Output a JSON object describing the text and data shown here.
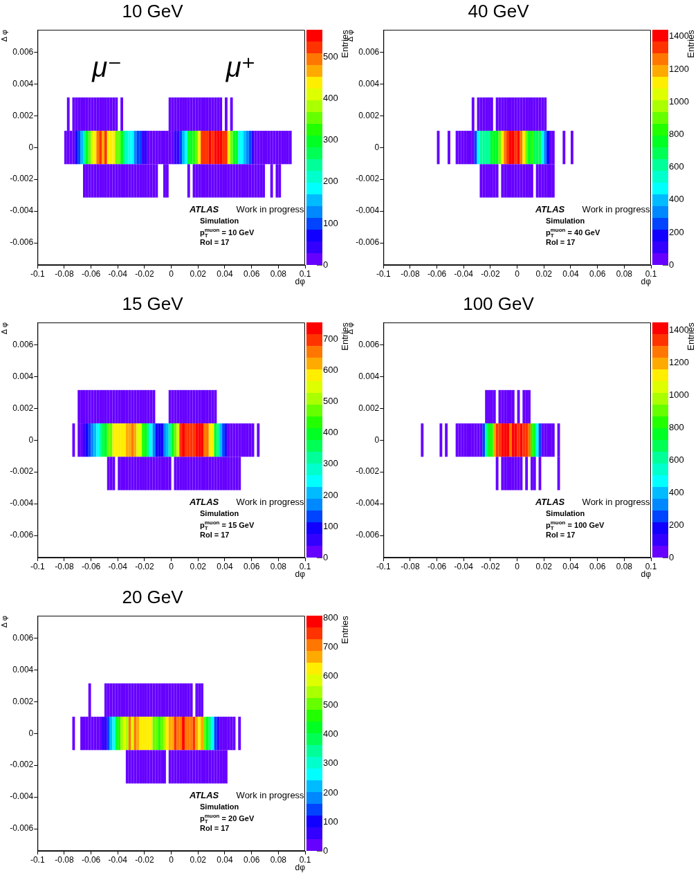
{
  "chart_data": [
    {
      "type": "heatmap",
      "title": "10 GeV",
      "xlabel": "dφ",
      "ylabel": "Δ φ",
      "clabel": "Entries",
      "xlim": [
        -0.1,
        0.1
      ],
      "xticks": [
        -0.1,
        -0.08,
        -0.06,
        -0.04,
        -0.02,
        0,
        0.02,
        0.04,
        0.06,
        0.08,
        0.1
      ],
      "ylim": [
        -0.0074,
        0.0074
      ],
      "yticks": [
        -0.006,
        -0.004,
        -0.002,
        0,
        0.002,
        0.004,
        0.006
      ],
      "clim": [
        0,
        565
      ],
      "cticks": [
        0,
        100,
        200,
        300,
        400,
        500
      ],
      "x": [
        -0.079,
        -0.077,
        -0.075,
        -0.073,
        -0.071,
        -0.069,
        -0.067,
        -0.065,
        -0.063,
        -0.061,
        -0.059,
        -0.057,
        -0.055,
        -0.053,
        -0.051,
        -0.049,
        -0.047,
        -0.045,
        -0.043,
        -0.041,
        -0.039,
        -0.037,
        -0.035,
        -0.033,
        -0.031,
        -0.029,
        -0.027,
        -0.025,
        -0.023,
        -0.021,
        -0.019,
        -0.017,
        -0.015,
        -0.013,
        -0.011,
        -0.009,
        -0.007,
        -0.005,
        -0.003,
        -0.001,
        0.001,
        0.003,
        0.005,
        0.007,
        0.009,
        0.011,
        0.013,
        0.015,
        0.017,
        0.019,
        0.021,
        0.023,
        0.025,
        0.027,
        0.029,
        0.031,
        0.033,
        0.035,
        0.037,
        0.039,
        0.041,
        0.043,
        0.045,
        0.047,
        0.049,
        0.051,
        0.053,
        0.055,
        0.057,
        0.059,
        0.061,
        0.063,
        0.065,
        0.067,
        0.069,
        0.071,
        0.073,
        0.075,
        0.077,
        0.079,
        0.081,
        0.083,
        0.085,
        0.087,
        0.089
      ],
      "y": [
        0.0021,
        0,
        -0.0021
      ],
      "cells": [
        [
          null,
          14,
          null,
          14,
          14,
          14,
          14,
          14,
          14,
          14,
          14,
          14,
          14,
          14,
          14,
          14,
          14,
          14,
          14,
          14,
          null,
          14,
          null,
          null,
          null,
          null,
          null,
          null,
          null,
          null,
          null,
          null,
          null,
          null,
          null,
          null,
          null,
          null,
          null,
          14,
          14,
          14,
          14,
          14,
          14,
          14,
          14,
          14,
          14,
          14,
          14,
          14,
          14,
          14,
          14,
          14,
          14,
          14,
          14,
          null,
          14,
          null,
          14,
          null,
          null,
          null,
          null,
          null,
          null,
          null,
          null,
          null,
          null,
          null,
          null,
          null,
          null,
          null,
          null,
          null,
          null,
          null,
          null,
          null,
          null
        ],
        [
          14,
          14,
          14,
          14,
          71,
          99,
          155,
          240,
          297,
          353,
          410,
          438,
          494,
          523,
          466,
          523,
          438,
          438,
          438,
          353,
          353,
          297,
          240,
          212,
          184,
          184,
          127,
          99,
          99,
          42,
          42,
          14,
          14,
          14,
          14,
          14,
          14,
          14,
          14,
          14,
          14,
          42,
          42,
          99,
          155,
          184,
          297,
          297,
          325,
          353,
          438,
          523,
          523,
          523,
          551,
          523,
          551,
          551,
          551,
          523,
          523,
          438,
          353,
          297,
          297,
          184,
          184,
          155,
          127,
          99,
          42,
          14,
          14,
          14,
          14,
          14,
          14,
          14,
          14,
          14,
          14,
          14,
          14,
          14,
          14
        ],
        [
          null,
          null,
          null,
          null,
          null,
          null,
          null,
          14,
          14,
          14,
          14,
          14,
          14,
          14,
          14,
          14,
          14,
          14,
          14,
          14,
          14,
          14,
          14,
          14,
          14,
          14,
          14,
          14,
          14,
          14,
          14,
          14,
          14,
          14,
          14,
          null,
          null,
          14,
          14,
          null,
          null,
          null,
          null,
          null,
          null,
          null,
          14,
          null,
          14,
          14,
          14,
          14,
          14,
          14,
          14,
          14,
          14,
          14,
          14,
          14,
          14,
          14,
          14,
          14,
          14,
          14,
          14,
          14,
          14,
          14,
          14,
          14,
          14,
          14,
          14,
          null,
          null,
          14,
          null,
          14,
          14,
          null,
          null,
          null,
          null
        ]
      ],
      "annotations": [
        "μ⁻",
        "μ⁺",
        "ATLAS",
        "Work in progress",
        "Simulation",
        "p$_{T}$$^{muon}$ = 10 GeV",
        "RoI = 17"
      ]
    },
    {
      "type": "heatmap",
      "title": "40 GeV",
      "xlabel": "dφ",
      "ylabel": "Δ φ",
      "clabel": "Entries",
      "xlim": [
        -0.1,
        0.1
      ],
      "xticks": [
        -0.1,
        -0.08,
        -0.06,
        -0.04,
        -0.02,
        0,
        0.02,
        0.04,
        0.06,
        0.08,
        0.1
      ],
      "ylim": [
        -0.0074,
        0.0074
      ],
      "yticks": [
        -0.006,
        -0.004,
        -0.002,
        0,
        0.002,
        0.004,
        0.006
      ],
      "clim": [
        0,
        1441
      ],
      "cticks": [
        0,
        200,
        400,
        600,
        800,
        1000,
        1200,
        1400
      ],
      "x": [
        -0.079,
        -0.077,
        -0.075,
        -0.073,
        -0.071,
        -0.069,
        -0.067,
        -0.065,
        -0.063,
        -0.061,
        -0.059,
        -0.057,
        -0.055,
        -0.053,
        -0.051,
        -0.049,
        -0.047,
        -0.045,
        -0.043,
        -0.041,
        -0.039,
        -0.037,
        -0.035,
        -0.033,
        -0.031,
        -0.029,
        -0.027,
        -0.025,
        -0.023,
        -0.021,
        -0.019,
        -0.017,
        -0.015,
        -0.013,
        -0.011,
        -0.009,
        -0.007,
        -0.005,
        -0.003,
        -0.001,
        0.001,
        0.003,
        0.005,
        0.007,
        0.009,
        0.011,
        0.013,
        0.015,
        0.017,
        0.019,
        0.021,
        0.023,
        0.025,
        0.027,
        0.029,
        0.031,
        0.033,
        0.035,
        0.037,
        0.039,
        0.041,
        0.043,
        0.045,
        0.047,
        0.049,
        0.051,
        0.053,
        0.055,
        0.057,
        0.059,
        0.061,
        0.063,
        0.065,
        0.067,
        0.069,
        0.071,
        0.073,
        0.075,
        0.077,
        0.079,
        0.081,
        0.083,
        0.085,
        0.087,
        0.089
      ],
      "y": [
        0.0021,
        0,
        -0.0021
      ],
      "cells": [
        [
          null,
          null,
          null,
          null,
          null,
          null,
          null,
          null,
          null,
          null,
          null,
          null,
          null,
          null,
          null,
          null,
          null,
          null,
          null,
          null,
          null,
          null,
          null,
          36,
          null,
          36,
          36,
          36,
          36,
          36,
          36,
          null,
          36,
          36,
          36,
          36,
          36,
          36,
          36,
          36,
          36,
          36,
          36,
          36,
          36,
          36,
          36,
          36,
          36,
          36,
          36,
          null,
          null,
          null,
          null,
          null,
          null,
          null,
          null,
          null,
          null,
          null,
          null,
          null,
          null,
          null,
          null,
          null,
          null,
          null,
          null,
          null,
          null,
          null,
          null,
          null,
          null,
          null,
          null,
          null,
          null,
          null,
          null,
          null,
          null
        ],
        [
          null,
          null,
          null,
          null,
          null,
          null,
          null,
          null,
          null,
          null,
          36,
          null,
          null,
          null,
          36,
          null,
          null,
          36,
          36,
          36,
          36,
          36,
          36,
          36,
          252,
          468,
          612,
          612,
          612,
          612,
          756,
          756,
          756,
          900,
          1116,
          1260,
          1332,
          1404,
          1404,
          1332,
          1404,
          1260,
          1116,
          900,
          756,
          828,
          684,
          684,
          684,
          468,
          324,
          180,
          36,
          36,
          null,
          null,
          null,
          36,
          null,
          null,
          36,
          null,
          null,
          null,
          null,
          null,
          null,
          null,
          null,
          null,
          null,
          null,
          null,
          null,
          null,
          null,
          null,
          null,
          null,
          null,
          null,
          null,
          null,
          null,
          null
        ],
        [
          null,
          null,
          null,
          null,
          null,
          null,
          null,
          null,
          null,
          null,
          null,
          null,
          null,
          null,
          null,
          null,
          null,
          null,
          null,
          null,
          null,
          null,
          null,
          null,
          null,
          null,
          36,
          36,
          36,
          36,
          36,
          36,
          36,
          null,
          36,
          36,
          36,
          36,
          36,
          36,
          36,
          36,
          36,
          36,
          36,
          36,
          null,
          36,
          36,
          36,
          36,
          36,
          36,
          36,
          null,
          null,
          null,
          null,
          null,
          null,
          null,
          null,
          null,
          null,
          null,
          null,
          null,
          null,
          null,
          null,
          null,
          null,
          null,
          null,
          null,
          null,
          null,
          null,
          null,
          null,
          null,
          null,
          null,
          null,
          null
        ]
      ],
      "annotations": [
        "ATLAS",
        "Work in progress",
        "Simulation",
        "p$_{T}$$^{muon}$ = 40 GeV",
        "RoI = 17"
      ]
    },
    {
      "type": "heatmap",
      "title": "15 GeV",
      "xlabel": "dφ",
      "ylabel": "Δ φ",
      "clabel": "Entries",
      "xlim": [
        -0.1,
        0.1
      ],
      "xticks": [
        -0.1,
        -0.08,
        -0.06,
        -0.04,
        -0.02,
        0,
        0.02,
        0.04,
        0.06,
        0.08,
        0.1
      ],
      "ylim": [
        -0.0074,
        0.0074
      ],
      "yticks": [
        -0.006,
        -0.004,
        -0.002,
        0,
        0.002,
        0.004,
        0.006
      ],
      "clim": [
        0,
        754
      ],
      "cticks": [
        0,
        100,
        200,
        300,
        400,
        500,
        600,
        700
      ],
      "x": [
        -0.079,
        -0.077,
        -0.075,
        -0.073,
        -0.071,
        -0.069,
        -0.067,
        -0.065,
        -0.063,
        -0.061,
        -0.059,
        -0.057,
        -0.055,
        -0.053,
        -0.051,
        -0.049,
        -0.047,
        -0.045,
        -0.043,
        -0.041,
        -0.039,
        -0.037,
        -0.035,
        -0.033,
        -0.031,
        -0.029,
        -0.027,
        -0.025,
        -0.023,
        -0.021,
        -0.019,
        -0.017,
        -0.015,
        -0.013,
        -0.011,
        -0.009,
        -0.007,
        -0.005,
        -0.003,
        -0.001,
        0.001,
        0.003,
        0.005,
        0.007,
        0.009,
        0.011,
        0.013,
        0.015,
        0.017,
        0.019,
        0.021,
        0.023,
        0.025,
        0.027,
        0.029,
        0.031,
        0.033,
        0.035,
        0.037,
        0.039,
        0.041,
        0.043,
        0.045,
        0.047,
        0.049,
        0.051,
        0.053,
        0.055,
        0.057,
        0.059,
        0.061,
        0.063,
        0.065,
        0.067,
        0.069,
        0.071,
        0.073,
        0.075,
        0.077,
        0.079,
        0.081,
        0.083,
        0.085,
        0.087,
        0.089
      ],
      "y": [
        0.0021,
        0,
        -0.0021
      ],
      "cells": [
        [
          null,
          null,
          null,
          null,
          null,
          19,
          19,
          19,
          19,
          19,
          19,
          19,
          19,
          19,
          19,
          19,
          19,
          19,
          19,
          19,
          19,
          19,
          19,
          19,
          19,
          19,
          19,
          19,
          19,
          19,
          19,
          19,
          19,
          19,
          null,
          null,
          null,
          null,
          null,
          19,
          19,
          19,
          19,
          19,
          19,
          19,
          19,
          19,
          19,
          19,
          19,
          19,
          19,
          19,
          19,
          19,
          19,
          null,
          null,
          null,
          null,
          null,
          null,
          null,
          null,
          null,
          null,
          null,
          null,
          null,
          null,
          null,
          null,
          null,
          null,
          null,
          null,
          null,
          null,
          null,
          null,
          null,
          null,
          null,
          null
        ],
        [
          null,
          null,
          null,
          19,
          null,
          19,
          19,
          57,
          94,
          132,
          170,
          207,
          245,
          320,
          358,
          396,
          471,
          471,
          584,
          584,
          584,
          584,
          584,
          622,
          622,
          660,
          622,
          547,
          547,
          434,
          396,
          320,
          245,
          170,
          94,
          94,
          94,
          170,
          207,
          320,
          396,
          471,
          547,
          697,
          735,
          697,
          697,
          697,
          697,
          735,
          735,
          735,
          660,
          660,
          584,
          584,
          396,
          320,
          207,
          132,
          57,
          19,
          19,
          19,
          19,
          19,
          19,
          19,
          19,
          19,
          19,
          null,
          19,
          null,
          null,
          null,
          null,
          null,
          null,
          null,
          null,
          null,
          null,
          null,
          null
        ],
        [
          null,
          null,
          null,
          null,
          null,
          null,
          null,
          null,
          null,
          null,
          null,
          null,
          null,
          null,
          null,
          null,
          19,
          19,
          19,
          null,
          19,
          19,
          19,
          19,
          19,
          19,
          19,
          19,
          19,
          19,
          19,
          19,
          19,
          19,
          19,
          19,
          19,
          19,
          19,
          19,
          null,
          19,
          19,
          19,
          19,
          19,
          19,
          19,
          19,
          19,
          19,
          19,
          19,
          19,
          19,
          19,
          19,
          19,
          19,
          19,
          19,
          19,
          19,
          19,
          19,
          19,
          null,
          null,
          null,
          null,
          null,
          null,
          null,
          null,
          null,
          null,
          null,
          null,
          null,
          null,
          null,
          null,
          null,
          null,
          null
        ]
      ],
      "annotations": [
        "ATLAS",
        "Work in progress",
        "Simulation",
        "p$_{T}$$^{muon}$ = 15 GeV",
        "RoI = 17"
      ]
    },
    {
      "type": "heatmap",
      "title": "100 GeV",
      "xlabel": "dφ",
      "ylabel": "Δ φ",
      "clabel": "Entries",
      "xlim": [
        -0.1,
        0.1
      ],
      "xticks": [
        -0.1,
        -0.08,
        -0.06,
        -0.04,
        -0.02,
        0,
        0.02,
        0.04,
        0.06,
        0.08,
        0.1
      ],
      "ylim": [
        -0.0074,
        0.0074
      ],
      "yticks": [
        -0.006,
        -0.004,
        -0.002,
        0,
        0.002,
        0.004,
        0.006
      ],
      "clim": [
        0,
        1446
      ],
      "cticks": [
        0,
        200,
        400,
        600,
        800,
        1000,
        1200,
        1400
      ],
      "x": [
        -0.079,
        -0.077,
        -0.075,
        -0.073,
        -0.071,
        -0.069,
        -0.067,
        -0.065,
        -0.063,
        -0.061,
        -0.059,
        -0.057,
        -0.055,
        -0.053,
        -0.051,
        -0.049,
        -0.047,
        -0.045,
        -0.043,
        -0.041,
        -0.039,
        -0.037,
        -0.035,
        -0.033,
        -0.031,
        -0.029,
        -0.027,
        -0.025,
        -0.023,
        -0.021,
        -0.019,
        -0.017,
        -0.015,
        -0.013,
        -0.011,
        -0.009,
        -0.007,
        -0.005,
        -0.003,
        -0.001,
        0.001,
        0.003,
        0.005,
        0.007,
        0.009,
        0.011,
        0.013,
        0.015,
        0.017,
        0.019,
        0.021,
        0.023,
        0.025,
        0.027,
        0.029,
        0.031,
        0.033,
        0.035,
        0.037,
        0.039,
        0.041,
        0.043,
        0.045,
        0.047,
        0.049,
        0.051,
        0.053,
        0.055,
        0.057,
        0.059,
        0.061,
        0.063,
        0.065,
        0.067,
        0.069,
        0.071,
        0.073,
        0.075,
        0.077,
        0.079,
        0.081,
        0.083,
        0.085,
        0.087,
        0.089
      ],
      "y": [
        0.0021,
        0,
        -0.0021
      ],
      "cells": [
        [
          null,
          null,
          null,
          null,
          null,
          null,
          null,
          null,
          null,
          null,
          null,
          null,
          null,
          null,
          null,
          null,
          null,
          null,
          null,
          null,
          null,
          null,
          null,
          null,
          null,
          null,
          null,
          null,
          36,
          36,
          36,
          36,
          null,
          36,
          36,
          36,
          36,
          36,
          36,
          null,
          36,
          null,
          36,
          36,
          36,
          null,
          null,
          null,
          null,
          null,
          null,
          null,
          null,
          null,
          null,
          null,
          null,
          null,
          null,
          null,
          null,
          null,
          null,
          null,
          null,
          null,
          null,
          null,
          null,
          null,
          null,
          null,
          null,
          null,
          null,
          null,
          null,
          null,
          null,
          null,
          null,
          null,
          null,
          null,
          null
        ],
        [
          null,
          null,
          null,
          null,
          36,
          null,
          null,
          null,
          null,
          null,
          null,
          36,
          null,
          36,
          null,
          null,
          null,
          36,
          36,
          36,
          36,
          36,
          36,
          36,
          36,
          36,
          36,
          253,
          614,
          759,
          831,
          1192,
          1336,
          1336,
          1409,
          1409,
          1409,
          1264,
          1409,
          1409,
          1336,
          1409,
          1336,
          1336,
          1264,
          831,
          759,
          470,
          253,
          36,
          36,
          36,
          36,
          36,
          null,
          36,
          null,
          null,
          null,
          null,
          null,
          null,
          null,
          null,
          null,
          null,
          null,
          null,
          null,
          null,
          null,
          null,
          null,
          null,
          null,
          null,
          null,
          null,
          null,
          null,
          null,
          null,
          null,
          null,
          null
        ],
        [
          null,
          null,
          null,
          null,
          null,
          null,
          null,
          null,
          null,
          null,
          null,
          null,
          null,
          null,
          null,
          null,
          null,
          null,
          null,
          null,
          null,
          null,
          null,
          null,
          null,
          null,
          null,
          null,
          null,
          null,
          null,
          null,
          36,
          null,
          36,
          36,
          36,
          36,
          36,
          36,
          36,
          36,
          null,
          36,
          null,
          36,
          36,
          null,
          36,
          null,
          null,
          null,
          null,
          null,
          null,
          36,
          null,
          null,
          null,
          null,
          null,
          null,
          null,
          null,
          null,
          null,
          null,
          null,
          null,
          null,
          null,
          null,
          null,
          null,
          null,
          null,
          null,
          null,
          null,
          null,
          null,
          null,
          null,
          null,
          null
        ]
      ],
      "annotations": [
        "ATLAS",
        "Work in progress",
        "Simulation",
        "p$_{T}$$^{muon}$ = 100 GeV",
        "RoI = 17"
      ]
    },
    {
      "type": "heatmap",
      "title": "20 GeV",
      "xlabel": "dφ",
      "ylabel": "Δ φ",
      "clabel": "Entries",
      "xlim": [
        -0.1,
        0.1
      ],
      "xticks": [
        -0.1,
        -0.08,
        -0.06,
        -0.04,
        -0.02,
        0,
        0.02,
        0.04,
        0.06,
        0.08,
        0.1
      ],
      "ylim": [
        -0.0074,
        0.0074
      ],
      "yticks": [
        -0.006,
        -0.004,
        -0.002,
        0,
        0.002,
        0.004,
        0.006
      ],
      "clim": [
        0,
        807
      ],
      "cticks": [
        0,
        100,
        200,
        300,
        400,
        500,
        600,
        700,
        800
      ],
      "x": [
        -0.079,
        -0.077,
        -0.075,
        -0.073,
        -0.071,
        -0.069,
        -0.067,
        -0.065,
        -0.063,
        -0.061,
        -0.059,
        -0.057,
        -0.055,
        -0.053,
        -0.051,
        -0.049,
        -0.047,
        -0.045,
        -0.043,
        -0.041,
        -0.039,
        -0.037,
        -0.035,
        -0.033,
        -0.031,
        -0.029,
        -0.027,
        -0.025,
        -0.023,
        -0.021,
        -0.019,
        -0.017,
        -0.015,
        -0.013,
        -0.011,
        -0.009,
        -0.007,
        -0.005,
        -0.003,
        -0.001,
        0.001,
        0.003,
        0.005,
        0.007,
        0.009,
        0.011,
        0.013,
        0.015,
        0.017,
        0.019,
        0.021,
        0.023,
        0.025,
        0.027,
        0.029,
        0.031,
        0.033,
        0.035,
        0.037,
        0.039,
        0.041,
        0.043,
        0.045,
        0.047,
        0.049,
        0.051,
        0.053,
        0.055,
        0.057,
        0.059,
        0.061,
        0.063,
        0.065,
        0.067,
        0.069,
        0.071,
        0.073,
        0.075,
        0.077,
        0.079,
        0.081,
        0.083,
        0.085,
        0.087,
        0.089
      ],
      "y": [
        0.0021,
        0,
        -0.0021
      ],
      "cells": [
        [
          null,
          null,
          null,
          null,
          null,
          null,
          null,
          null,
          null,
          20,
          null,
          null,
          null,
          null,
          null,
          20,
          20,
          20,
          20,
          20,
          20,
          20,
          20,
          20,
          20,
          20,
          20,
          20,
          20,
          20,
          20,
          20,
          20,
          20,
          20,
          20,
          20,
          20,
          20,
          20,
          20,
          20,
          20,
          20,
          20,
          20,
          20,
          20,
          null,
          20,
          20,
          20,
          null,
          null,
          null,
          null,
          null,
          null,
          null,
          null,
          null,
          null,
          null,
          null,
          null,
          null,
          null,
          null,
          null,
          null,
          null,
          null,
          null,
          null,
          null,
          null,
          null,
          null,
          null,
          null,
          null,
          null,
          null,
          null,
          null
        ],
        [
          null,
          null,
          null,
          20,
          null,
          null,
          20,
          20,
          20,
          20,
          20,
          20,
          20,
          20,
          61,
          61,
          141,
          222,
          262,
          424,
          464,
          545,
          585,
          545,
          706,
          585,
          706,
          666,
          625,
          625,
          625,
          625,
          625,
          504,
          504,
          464,
          504,
          545,
          625,
          666,
          666,
          746,
          706,
          706,
          787,
          706,
          706,
          706,
          746,
          666,
          625,
          666,
          504,
          424,
          343,
          262,
          141,
          61,
          20,
          20,
          20,
          20,
          20,
          20,
          null,
          20,
          null,
          null,
          null,
          null,
          null,
          null,
          null,
          null,
          null,
          null,
          null,
          null,
          null,
          null,
          null,
          null,
          null,
          null,
          null
        ],
        [
          null,
          null,
          null,
          null,
          null,
          null,
          null,
          null,
          null,
          null,
          null,
          null,
          null,
          null,
          null,
          null,
          null,
          null,
          null,
          null,
          null,
          null,
          null,
          20,
          20,
          20,
          20,
          20,
          20,
          20,
          20,
          20,
          20,
          20,
          20,
          20,
          20,
          20,
          null,
          20,
          20,
          20,
          20,
          20,
          20,
          20,
          20,
          20,
          20,
          20,
          20,
          20,
          20,
          20,
          20,
          20,
          20,
          20,
          20,
          20,
          20,
          null,
          null,
          null,
          null,
          null,
          null,
          null,
          null,
          null,
          null,
          null,
          null,
          null,
          null,
          null,
          null,
          null,
          null,
          null,
          null,
          null,
          null,
          null,
          null
        ]
      ],
      "annotations": [
        "ATLAS",
        "Work in progress",
        "Simulation",
        "p$_{T}$$^{muon}$ = 20 GeV",
        "RoI = 17"
      ]
    }
  ]
}
